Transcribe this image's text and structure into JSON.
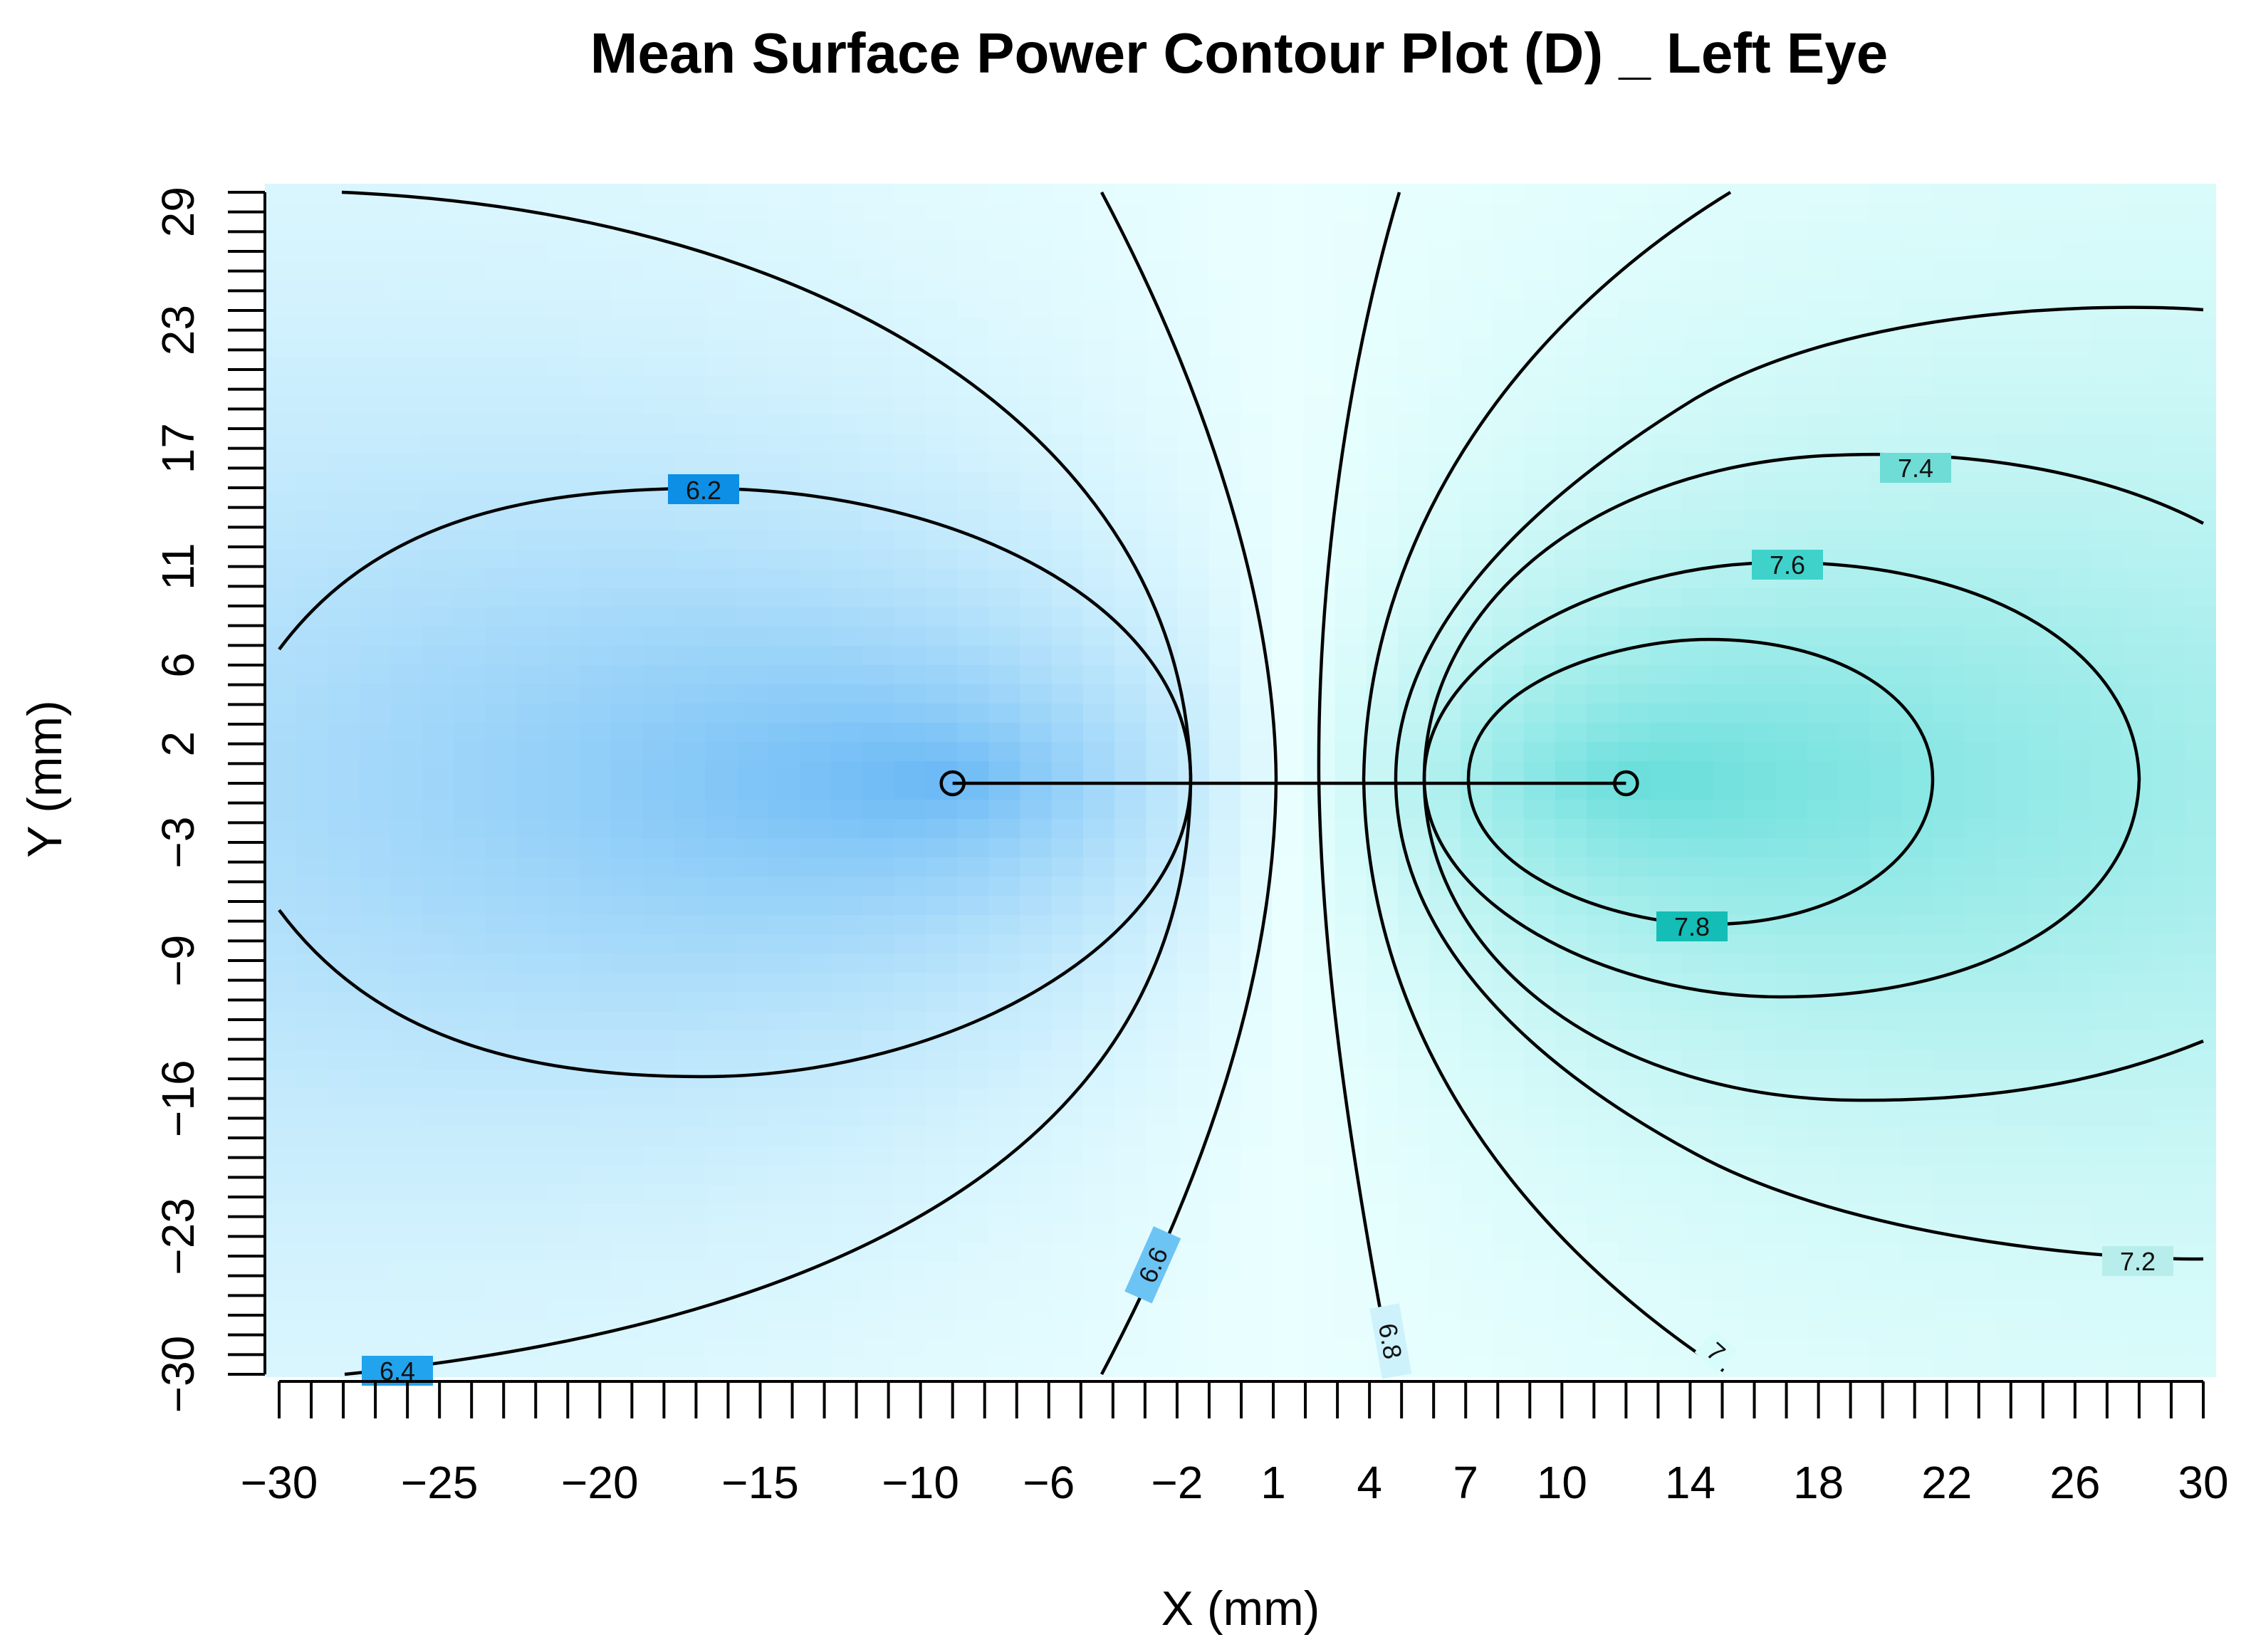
{
  "chart_data": {
    "type": "heatmap",
    "title": "Mean Surface Power Contour Plot (D) _ Left Eye",
    "xlabel": "X (mm)",
    "ylabel": "Y (mm)",
    "xlim": [
      -30,
      30
    ],
    "ylim": [
      -30,
      30
    ],
    "x_ticks": [
      "−30",
      "−25",
      "−20",
      "−15",
      "−10",
      "−6",
      "−2",
      "1",
      "4",
      "7",
      "10",
      "14",
      "18",
      "22",
      "26",
      "30"
    ],
    "y_ticks": [
      "−30",
      "−23",
      "−16",
      "−9",
      "−3",
      "2",
      "6",
      "11",
      "17",
      "23",
      "29"
    ],
    "grid": false,
    "legend": "none",
    "contour_levels": [
      "6.2",
      "6.4",
      "6.6",
      "6.8",
      "7",
      "7.2",
      "7.4",
      "7.6",
      "7.8"
    ],
    "markers": [
      {
        "x": -9,
        "y": 0
      },
      {
        "x": 12,
        "y": 0
      }
    ],
    "colors": {
      "low": "#0a84ee",
      "mid": "#eaffff",
      "high": "#08c6c0"
    }
  }
}
